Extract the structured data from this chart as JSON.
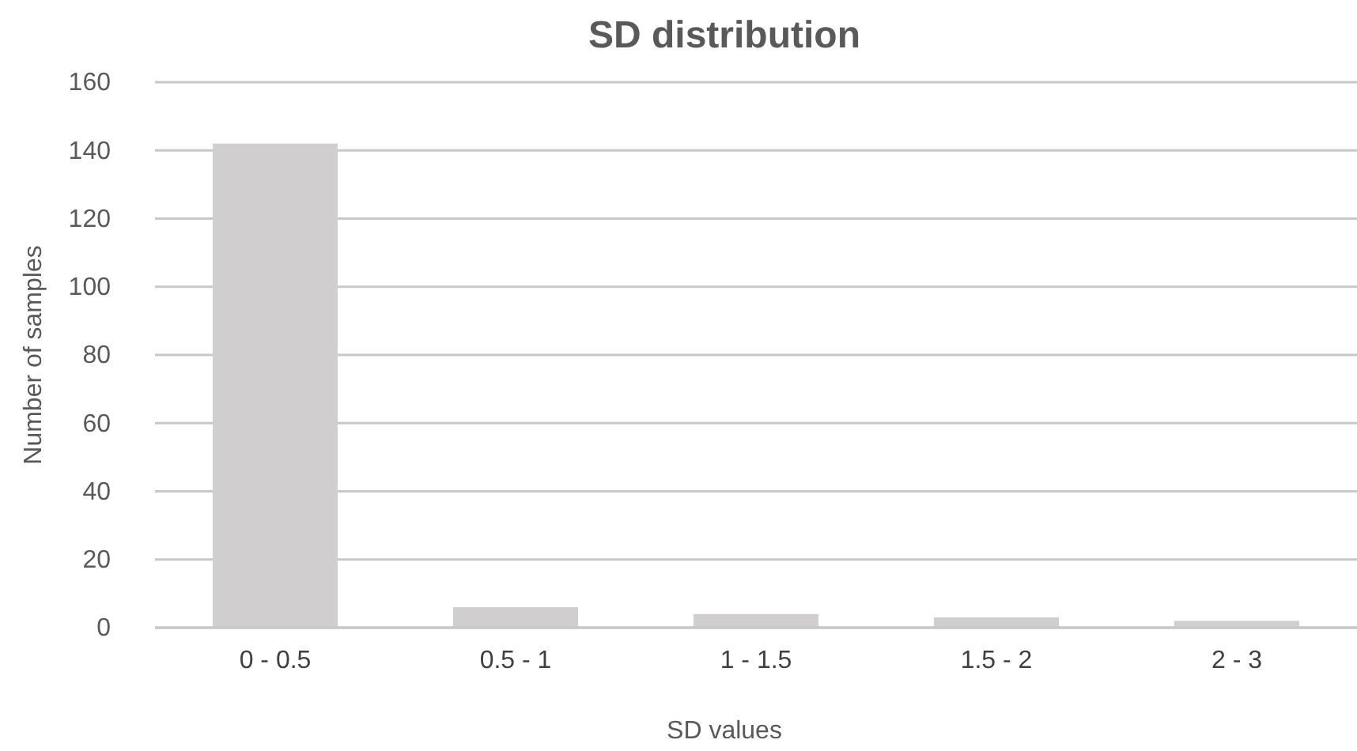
{
  "chart_data": {
    "type": "bar",
    "title": "SD distribution",
    "xlabel": "SD values",
    "ylabel": "Number of samples",
    "categories": [
      "0 - 0.5",
      "0.5 - 1",
      "1 - 1.5",
      "1.5 - 2",
      "2 - 3"
    ],
    "values": [
      142,
      6,
      4,
      3,
      2
    ],
    "color": "#d0cece",
    "ylim": [
      0,
      160
    ],
    "yticks": [
      0,
      20,
      40,
      60,
      80,
      100,
      120,
      140,
      160
    ],
    "grid": "y"
  }
}
